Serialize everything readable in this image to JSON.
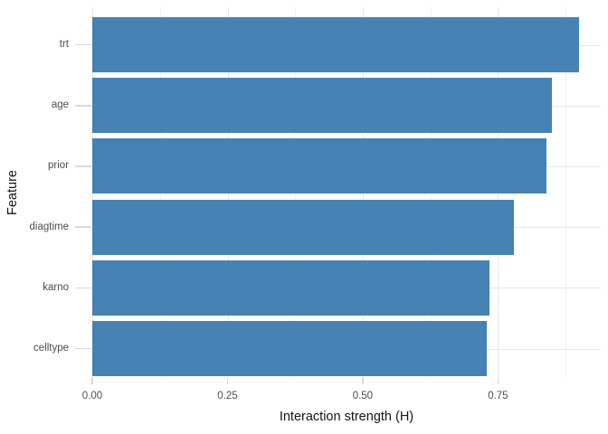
{
  "chart_data": {
    "type": "bar",
    "orientation": "horizontal",
    "title": "",
    "xlabel": "Interaction strength (H)",
    "ylabel": "Feature",
    "categories": [
      "trt",
      "age",
      "prior",
      "diagtime",
      "karno",
      "celltype"
    ],
    "values": [
      0.9,
      0.85,
      0.84,
      0.78,
      0.735,
      0.73
    ],
    "x_ticks": [
      0,
      0.25,
      0.5,
      0.75
    ],
    "x_tick_labels": [
      "0.00",
      "0.25",
      "0.50",
      "0.75"
    ],
    "xlim": [
      0,
      0.94
    ],
    "grid": true,
    "legend": false,
    "colors": {
      "bar": "#4682B4",
      "grid_major": "#e7e7e7",
      "grid_minor": "#f3f3f3",
      "tick_mark": "#d9d9d9",
      "tick_text": "#4d4d4d",
      "title_text": "#141414",
      "background": "#ffffff"
    }
  }
}
